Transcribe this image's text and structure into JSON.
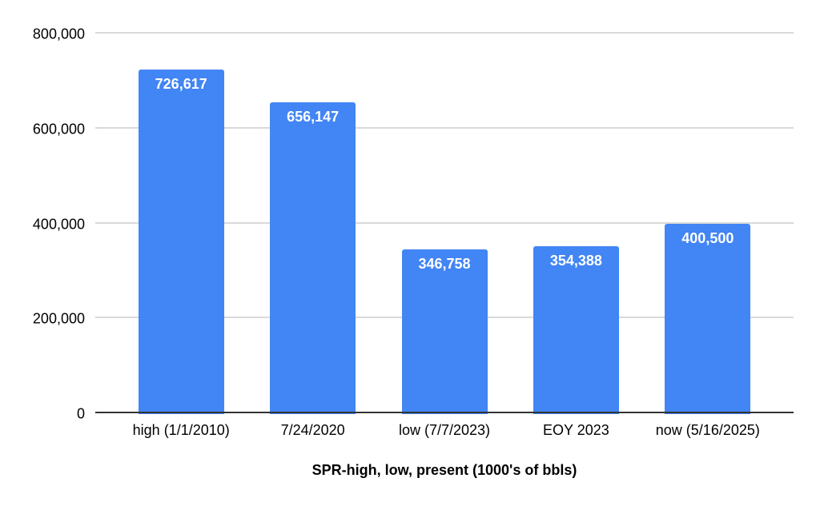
{
  "chart_data": {
    "type": "bar",
    "title": "",
    "xlabel": "SPR-high, low, present (1000's of bbls)",
    "ylabel": "",
    "categories": [
      "high (1/1/2010)",
      "7/24/2020",
      "low (7/7/2023)",
      "EOY 2023",
      "now (5/16/2025)"
    ],
    "values": [
      726617,
      656147,
      346758,
      354388,
      400500
    ],
    "value_labels": [
      "726,617",
      "656,147",
      "346,758",
      "354,388",
      "400,500"
    ],
    "y_ticks": [
      0,
      200000,
      400000,
      600000,
      800000
    ],
    "y_tick_labels": [
      "0",
      "200,000",
      "400,000",
      "600,000",
      "800,000"
    ],
    "ylim": [
      0,
      800000
    ],
    "grid": true,
    "legend": "none",
    "colors": {
      "bar": "#4285F4",
      "bar_label": "#ffffff",
      "gridline": "#d9d9d9",
      "axis_line": "#333333",
      "text": "#000000",
      "background": "#ffffff"
    }
  }
}
